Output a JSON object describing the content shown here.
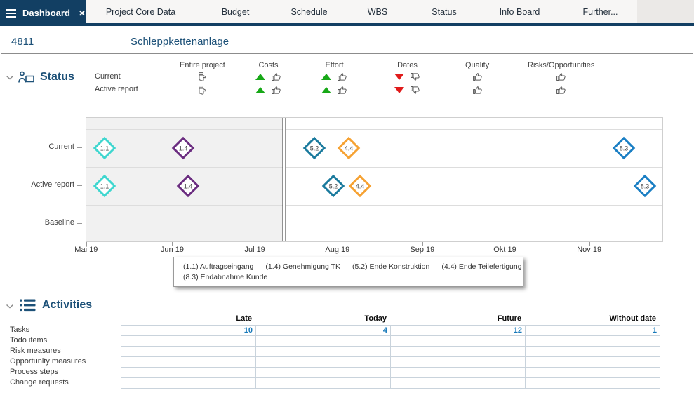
{
  "colors": {
    "navy": "#123f63",
    "title_blue": "#1d5178",
    "green": "#17a817",
    "red": "#e01b1b",
    "value_blue": "#1779ba"
  },
  "tabbar": {
    "active_tab": {
      "label": "Dashboard"
    },
    "tabs": [
      "Project Core Data",
      "Budget",
      "Schedule",
      "WBS",
      "Status",
      "Info Board",
      "Further..."
    ]
  },
  "header": {
    "project_id": "4811",
    "project_name": "Schleppkettenanlage"
  },
  "status_section": {
    "title": "Status",
    "row_labels": [
      "Current",
      "Active report"
    ],
    "columns": [
      {
        "label": "Entire project",
        "rows": [
          {
            "trend": null,
            "thumb": "neutral"
          },
          {
            "trend": null,
            "thumb": "neutral"
          }
        ]
      },
      {
        "label": "Costs",
        "rows": [
          {
            "trend": "up",
            "thumb": "up"
          },
          {
            "trend": "up",
            "thumb": "up"
          }
        ]
      },
      {
        "label": "Effort",
        "rows": [
          {
            "trend": "up",
            "thumb": "up"
          },
          {
            "trend": "up",
            "thumb": "up"
          }
        ]
      },
      {
        "label": "Dates",
        "rows": [
          {
            "trend": "down",
            "thumb": "down"
          },
          {
            "trend": "down",
            "thumb": "down"
          }
        ]
      },
      {
        "label": "Quality",
        "rows": [
          {
            "trend": null,
            "thumb": "up"
          },
          {
            "trend": null,
            "thumb": "up"
          }
        ]
      },
      {
        "label": "Risks/Opportunities",
        "rows": [
          {
            "trend": null,
            "thumb": "up"
          },
          {
            "trend": null,
            "thumb": "up"
          }
        ]
      }
    ]
  },
  "chart_data": {
    "type": "scatter",
    "subtype": "milestone-timeline",
    "title": "Milestone timeline by report version",
    "row_labels": [
      "Current",
      "Active report",
      "Baseline"
    ],
    "x_axis": {
      "labels": [
        "Mai 19",
        "Jun 19",
        "Jul 19",
        "Aug 19",
        "Sep 19",
        "Okt 19",
        "Nov 19"
      ],
      "tick_percents": [
        0.1,
        15.0,
        29.3,
        43.6,
        58.3,
        72.6,
        87.2
      ]
    },
    "today_percent": 34.3,
    "milestone_colors": {
      "1.1": "#3fd6cf",
      "1.4": "#6b2d80",
      "5.2": "#1a7a9d",
      "4.4": "#f6a233",
      "8.3": "#1b7fc4"
    },
    "series": [
      {
        "row": "Current",
        "points": [
          {
            "id": "1.1",
            "x_percent": 3.2
          },
          {
            "id": "1.4",
            "x_percent": 16.8
          },
          {
            "id": "5.2",
            "x_percent": 39.6
          },
          {
            "id": "4.4",
            "x_percent": 45.6
          },
          {
            "id": "8.3",
            "x_percent": 93.3
          }
        ]
      },
      {
        "row": "Active report",
        "points": [
          {
            "id": "1.1",
            "x_percent": 3.2
          },
          {
            "id": "1.4",
            "x_percent": 17.7
          },
          {
            "id": "5.2",
            "x_percent": 42.9
          },
          {
            "id": "4.4",
            "x_percent": 47.5
          },
          {
            "id": "8.3",
            "x_percent": 97.0
          }
        ]
      },
      {
        "row": "Baseline",
        "points": []
      }
    ],
    "legend": [
      {
        "id": "1.1",
        "label": "(1.1) Auftragseingang",
        "line": 0
      },
      {
        "id": "1.4",
        "label": "(1.4) Genehmigung TK",
        "line": 0
      },
      {
        "id": "5.2",
        "label": "(5.2) Ende Konstruktion",
        "line": 0
      },
      {
        "id": "4.4",
        "label": "(4.4) Ende Teilefertigung",
        "line": 0
      },
      {
        "id": "8.3",
        "label": "(8.3) Endabnahme Kunde",
        "line": 1
      }
    ]
  },
  "activities": {
    "title": "Activities",
    "columns": [
      "Late",
      "Today",
      "Future",
      "Without date"
    ],
    "rows": [
      {
        "label": "Tasks",
        "values": [
          "10",
          "4",
          "12",
          "1"
        ]
      },
      {
        "label": "Todo items",
        "values": [
          "",
          "",
          "",
          ""
        ]
      },
      {
        "label": "Risk measures",
        "values": [
          "",
          "",
          "",
          ""
        ]
      },
      {
        "label": "Opportunity measures",
        "values": [
          "",
          "",
          "",
          ""
        ]
      },
      {
        "label": "Process steps",
        "values": [
          "",
          "",
          "",
          ""
        ]
      },
      {
        "label": "Change requests",
        "values": [
          "",
          "",
          "",
          ""
        ]
      }
    ]
  }
}
